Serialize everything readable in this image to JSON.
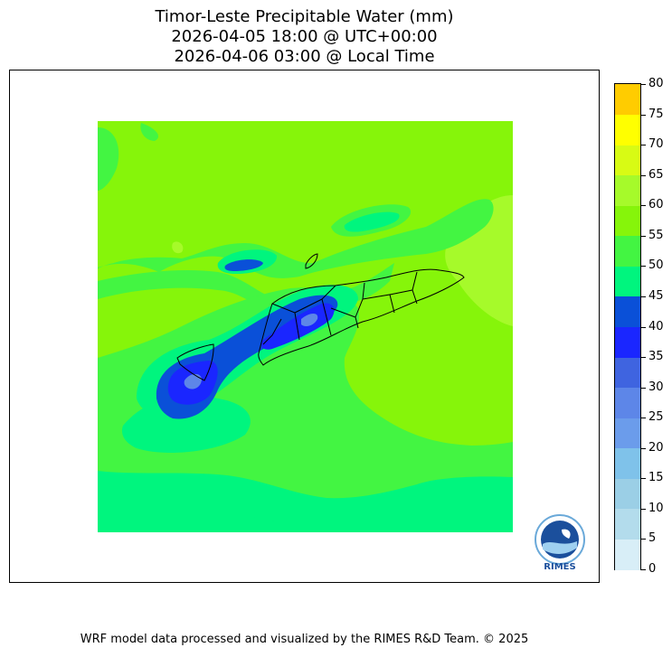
{
  "title": {
    "line1": "Timor-Leste Precipitable Water (mm)",
    "line2": "2026-04-05 18:00 @ UTC+00:00",
    "line3": "2026-04-06 03:00 @ Local Time"
  },
  "colorbar": {
    "ticks": [
      "0",
      "5",
      "10",
      "15",
      "20",
      "25",
      "30",
      "35",
      "40",
      "45",
      "50",
      "55",
      "60",
      "65",
      "70",
      "75",
      "80"
    ],
    "colors": [
      "#d8eef7",
      "#b3dcec",
      "#9bcfe6",
      "#7fc2ea",
      "#6b9ceb",
      "#5d86e8",
      "#3f64e0",
      "#1a26ff",
      "#0a50d8",
      "#00f57e",
      "#43f542",
      "#86f50a",
      "#a6fa2a",
      "#d8fb14",
      "#ffff00",
      "#ffcc00"
    ]
  },
  "logo": {
    "text": "RIMES"
  },
  "footer": "WRF model data processed and visualized by the RIMES R&D Team. © 2025"
}
